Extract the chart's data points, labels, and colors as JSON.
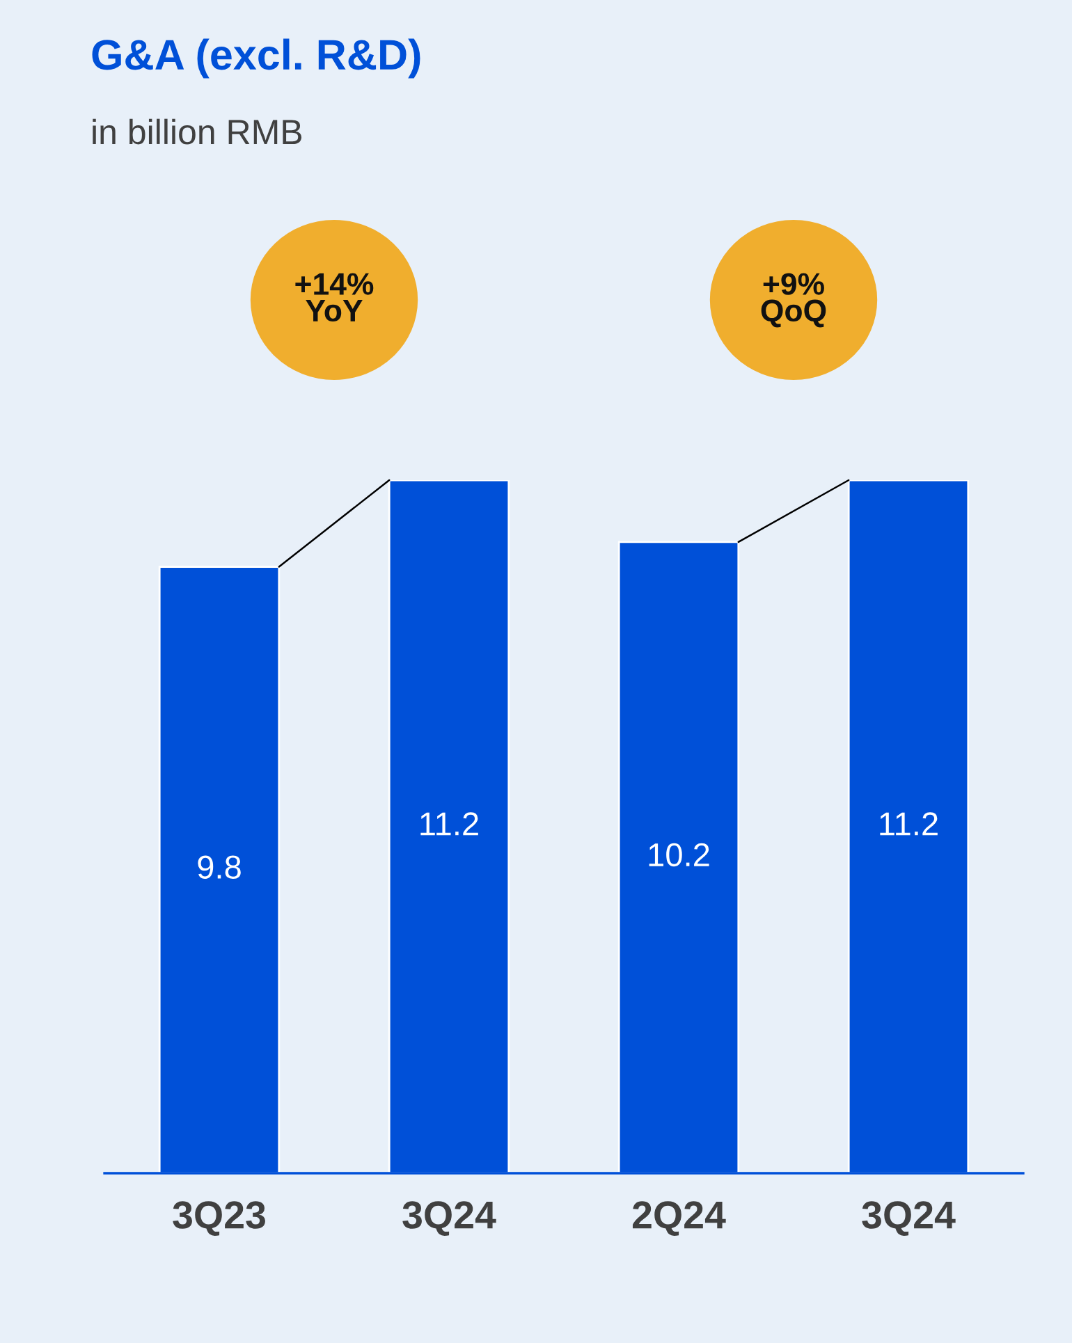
{
  "chart_data": {
    "type": "bar",
    "title": "G&A (excl. R&D)",
    "subtitle": "in billion RMB",
    "categories": [
      "3Q23",
      "3Q24",
      "2Q24",
      "3Q24"
    ],
    "values": [
      9.8,
      11.2,
      10.2,
      11.2
    ],
    "color": "#0050d8",
    "data_labels": true,
    "annotations": [
      "+14%\nYoY",
      "+9%\nQoQ"
    ],
    "grid": false,
    "legend": false
  }
}
